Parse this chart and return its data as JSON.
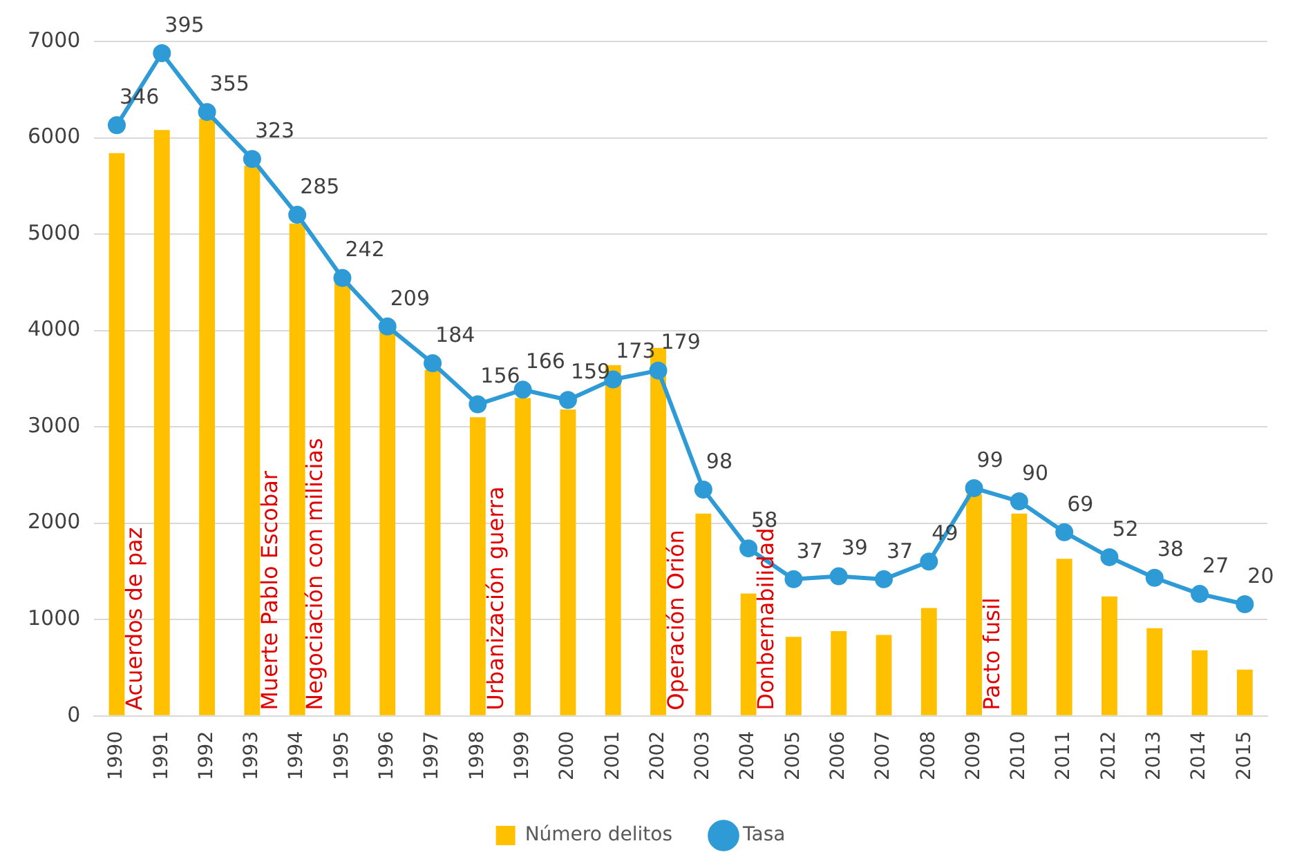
{
  "chart_data": {
    "type": "bar",
    "categories": [
      "1990",
      "1991",
      "1992",
      "1993",
      "1994",
      "1995",
      "1996",
      "1997",
      "1998",
      "1999",
      "2000",
      "2001",
      "2002",
      "2003",
      "2004",
      "2005",
      "2006",
      "2007",
      "2008",
      "2009",
      "2010",
      "2011",
      "2012",
      "2013",
      "2014",
      "2015"
    ],
    "series": [
      {
        "name": "Número delitos",
        "color": "#ffc000",
        "values": [
          5840,
          6080,
          6200,
          5710,
          5110,
          4500,
          3990,
          3590,
          3100,
          3300,
          3180,
          3640,
          3820,
          2100,
          1270,
          820,
          880,
          840,
          1120,
          2300,
          2100,
          1630,
          1240,
          910,
          680,
          480
        ]
      },
      {
        "name": "Tasa",
        "type": "line",
        "axis": "y2",
        "color": "#2e9bd6",
        "values": [
          346,
          395,
          355,
          323,
          285,
          242,
          209,
          184,
          156,
          166,
          159,
          173,
          179,
          98,
          58,
          37,
          39,
          37,
          49,
          99,
          90,
          69,
          52,
          38,
          27,
          20
        ],
        "value_labels": [
          "346",
          "395",
          "355",
          "323",
          "285",
          "242",
          "209",
          "184",
          "156",
          "166",
          "159",
          "173",
          "179",
          "98",
          "58",
          "37",
          "39",
          "37",
          "49",
          "99",
          "90",
          "69",
          "52",
          "38",
          "27",
          "20"
        ]
      }
    ],
    "ylim": [
      0,
      7000
    ],
    "yticks": [
      0,
      1000,
      2000,
      3000,
      4000,
      5000,
      6000,
      7000
    ],
    "y2lim": [
      -56,
      403
    ],
    "grid": "y",
    "legend": "bottom",
    "marker": "circle",
    "annotations": [
      "Acuerdos de paz",
      "Muerte Pablo Escobar",
      "Negociación con milicias",
      "Urbanización guerra",
      "Operación Orión",
      "Donbernabilidad",
      "Pacto fusil"
    ]
  }
}
